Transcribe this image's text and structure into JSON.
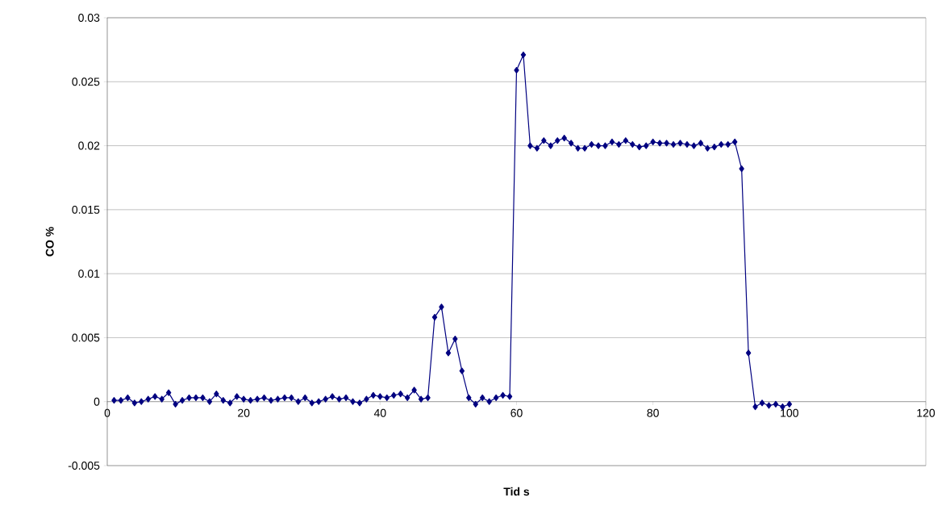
{
  "chart_data": {
    "type": "line",
    "xlabel": "Tid s",
    "ylabel": "CO %",
    "x": [
      1,
      2,
      3,
      4,
      5,
      6,
      7,
      8,
      9,
      10,
      11,
      12,
      13,
      14,
      15,
      16,
      17,
      18,
      19,
      20,
      21,
      22,
      23,
      24,
      25,
      26,
      27,
      28,
      29,
      30,
      31,
      32,
      33,
      34,
      35,
      36,
      37,
      38,
      39,
      40,
      41,
      42,
      43,
      44,
      45,
      46,
      47,
      48,
      49,
      50,
      51,
      52,
      53,
      54,
      55,
      56,
      57,
      58,
      59,
      60,
      61,
      62,
      63,
      64,
      65,
      66,
      67,
      68,
      69,
      70,
      71,
      72,
      73,
      74,
      75,
      76,
      77,
      78,
      79,
      80,
      81,
      82,
      83,
      84,
      85,
      86,
      87,
      88,
      89,
      90,
      91,
      92,
      93,
      94,
      95,
      96,
      97,
      98,
      99,
      100
    ],
    "series": [
      {
        "color": "#000080",
        "values": [
          0.0001,
          0.0001,
          0.0003,
          -0.0001,
          0.0,
          0.0002,
          0.0004,
          0.0002,
          0.0007,
          -0.0002,
          0.0001,
          0.0003,
          0.0003,
          0.0003,
          0.0,
          0.0006,
          0.0001,
          -0.0001,
          0.0004,
          0.0002,
          0.0001,
          0.0002,
          0.0003,
          0.0001,
          0.0002,
          0.0003,
          0.0003,
          0.0,
          0.0003,
          -0.0001,
          0.0,
          0.0002,
          0.0004,
          0.0002,
          0.0003,
          0.0,
          -0.0001,
          0.0002,
          0.0005,
          0.0004,
          0.0003,
          0.0005,
          0.0006,
          0.0003,
          0.0009,
          0.0002,
          0.0003,
          0.0066,
          0.0074,
          0.0038,
          0.0049,
          0.0024,
          0.0003,
          -0.0002,
          0.0003,
          0.0,
          0.0003,
          0.0005,
          0.0004,
          0.0259,
          0.0271,
          0.02,
          0.0198,
          0.0204,
          0.02,
          0.0204,
          0.0206,
          0.0202,
          0.0198,
          0.0198,
          0.0201,
          0.02,
          0.02,
          0.0203,
          0.0201,
          0.0204,
          0.0201,
          0.0199,
          0.02,
          0.0203,
          0.0202,
          0.0202,
          0.0201,
          0.0202,
          0.0201,
          0.02,
          0.0202,
          0.0198,
          0.0199,
          0.0201,
          0.0201,
          0.0203,
          0.0182,
          0.0038,
          -0.0004,
          -0.0001,
          -0.0003,
          -0.0002,
          -0.0004,
          -0.0002
        ]
      }
    ],
    "xlim": [
      0,
      120
    ],
    "xticks": [
      0,
      20,
      40,
      60,
      80,
      100,
      120
    ],
    "ylim": [
      -0.005,
      0.03
    ],
    "yticks": [
      -0.005,
      0,
      0.005,
      0.01,
      0.015,
      0.02,
      0.025,
      0.03
    ],
    "grid": "y",
    "marker": "diamond",
    "line_style": "solid"
  }
}
